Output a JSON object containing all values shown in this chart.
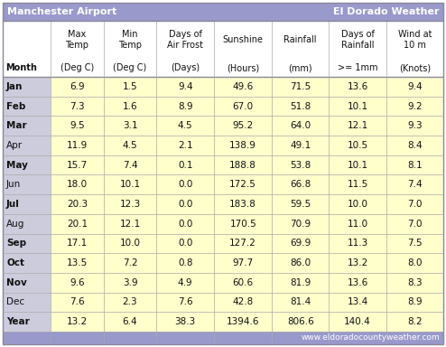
{
  "title_left": "Manchester Airport",
  "title_right": "El Dorado Weather",
  "website": "www.eldoradocountyweather.com",
  "rows": [
    [
      "Jan",
      "6.9",
      "1.5",
      "9.4",
      "49.6",
      "71.5",
      "13.6",
      "9.4"
    ],
    [
      "Feb",
      "7.3",
      "1.6",
      "8.9",
      "67.0",
      "51.8",
      "10.1",
      "9.2"
    ],
    [
      "Mar",
      "9.5",
      "3.1",
      "4.5",
      "95.2",
      "64.0",
      "12.1",
      "9.3"
    ],
    [
      "Apr",
      "11.9",
      "4.5",
      "2.1",
      "138.9",
      "49.1",
      "10.5",
      "8.4"
    ],
    [
      "May",
      "15.7",
      "7.4",
      "0.1",
      "188.8",
      "53.8",
      "10.1",
      "8.1"
    ],
    [
      "Jun",
      "18.0",
      "10.1",
      "0.0",
      "172.5",
      "66.8",
      "11.5",
      "7.4"
    ],
    [
      "Jul",
      "20.3",
      "12.3",
      "0.0",
      "183.8",
      "59.5",
      "10.0",
      "7.0"
    ],
    [
      "Aug",
      "20.1",
      "12.1",
      "0.0",
      "170.5",
      "70.9",
      "11.0",
      "7.0"
    ],
    [
      "Sep",
      "17.1",
      "10.0",
      "0.0",
      "127.2",
      "69.9",
      "11.3",
      "7.5"
    ],
    [
      "Oct",
      "13.5",
      "7.2",
      "0.8",
      "97.7",
      "86.0",
      "13.2",
      "8.0"
    ],
    [
      "Nov",
      "9.6",
      "3.9",
      "4.9",
      "60.6",
      "81.9",
      "13.6",
      "8.3"
    ],
    [
      "Dec",
      "7.6",
      "2.3",
      "7.6",
      "42.8",
      "81.4",
      "13.4",
      "8.9"
    ],
    [
      "Year",
      "13.2",
      "6.4",
      "38.3",
      "1394.6",
      "806.6",
      "140.4",
      "8.2"
    ]
  ],
  "header1": [
    "",
    "Max\nTemp",
    "Min\nTemp",
    "Days of\nAir Frost",
    "Sunshine",
    "Rainfall",
    "Days of\nRainfall",
    "Wind at\n10 m"
  ],
  "header2": [
    "Month",
    "(Deg C)",
    "(Deg C)",
    "(Days)",
    "(Hours)",
    "(mm)",
    ">= 1mm",
    "(Knots)"
  ],
  "bold_months": [
    "Jan",
    "Feb",
    "Mar",
    "May",
    "Jul",
    "Sep",
    "Oct",
    "Nov",
    "Year"
  ],
  "title_bg": "#9999cc",
  "title_fg": "#ffffff",
  "month_col_bg": "#ccccdd",
  "data_col_bg": "#ffffcc",
  "header_bg": "#ffffff",
  "border_color": "#888899",
  "row_line_color": "#aaaaaa",
  "bottom_bar_bg": "#9999cc",
  "bottom_bar_fg": "#ffffff"
}
